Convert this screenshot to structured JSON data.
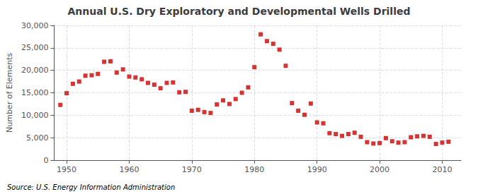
{
  "chart_data": {
    "type": "scatter",
    "title": "Annual U.S. Dry Exploratory and Developmental Wells Drilled",
    "ylabel": "Number of Elements",
    "source": "Source: U.S. Energy Information Administration",
    "color": "#cc0000",
    "marker": "square",
    "grid": true,
    "x": [
      1949,
      1950,
      1951,
      1952,
      1953,
      1954,
      1955,
      1956,
      1957,
      1958,
      1959,
      1960,
      1961,
      1962,
      1963,
      1964,
      1965,
      1966,
      1967,
      1968,
      1969,
      1970,
      1971,
      1972,
      1973,
      1974,
      1975,
      1976,
      1977,
      1978,
      1979,
      1980,
      1981,
      1982,
      1983,
      1984,
      1985,
      1986,
      1987,
      1988,
      1989,
      1990,
      1991,
      1992,
      1993,
      1994,
      1995,
      1996,
      1997,
      1998,
      1999,
      2000,
      2001,
      2002,
      2003,
      2004,
      2005,
      2006,
      2007,
      2008,
      2009,
      2010,
      2011
    ],
    "values": [
      12300,
      14900,
      17000,
      17500,
      18800,
      18900,
      19200,
      21900,
      22000,
      19500,
      20200,
      18600,
      18400,
      18000,
      17200,
      16800,
      16000,
      17200,
      17300,
      15100,
      15200,
      11000,
      11200,
      10700,
      10500,
      12400,
      13300,
      12500,
      13600,
      15000,
      16200,
      20700,
      28000,
      26500,
      25900,
      24600,
      21000,
      12700,
      11000,
      10100,
      12600,
      8400,
      8200,
      6000,
      5800,
      5400,
      5800,
      6100,
      5200,
      4000,
      3700,
      3800,
      4900,
      4200,
      3900,
      4000,
      5100,
      5300,
      5400,
      5200,
      3600,
      3900,
      4100
    ],
    "xlim": [
      1948,
      2013
    ],
    "xticks": [
      1950,
      1960,
      1970,
      1980,
      1990,
      2000,
      2010
    ],
    "ylim": [
      0,
      30000
    ],
    "yticks": [
      0,
      {
        "value": 5000,
        "label": "5,000"
      },
      {
        "value": 10000,
        "label": "10,000"
      },
      {
        "value": 15000,
        "label": "15,000"
      },
      {
        "value": 20000,
        "label": "20,000"
      },
      {
        "value": 25000,
        "label": "25,000"
      },
      {
        "value": 30000,
        "label": "30,000"
      }
    ]
  }
}
